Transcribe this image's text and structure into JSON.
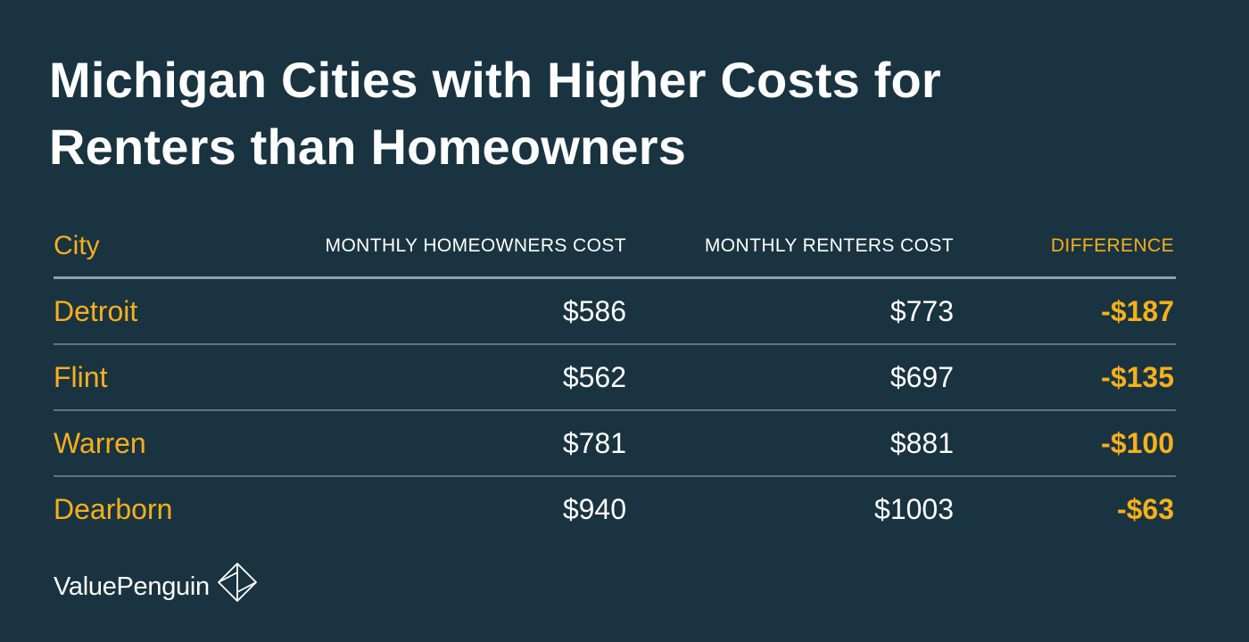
{
  "title_lines": [
    "Michigan Cities with Higher Costs for",
    "Renters than Homeowners"
  ],
  "chart_data": {
    "type": "table",
    "columns": [
      "City",
      "MONTHLY HOMEOWNERS COST",
      "MONTHLY RENTERS COST",
      "DIFFERENCE"
    ],
    "rows": [
      {
        "city": "Detroit",
        "homeowners": "$586",
        "renters": "$773",
        "difference": "-$187"
      },
      {
        "city": "Flint",
        "homeowners": "$562",
        "renters": "$697",
        "difference": "-$135"
      },
      {
        "city": "Warren",
        "homeowners": "$781",
        "renters": "$881",
        "difference": "-$100"
      },
      {
        "city": "Dearborn",
        "homeowners": "$940",
        "renters": "$1003",
        "difference": "-$63"
      }
    ]
  },
  "brand": {
    "name": "ValuePenguin",
    "logo_icon": "valuepenguin-logo-icon"
  },
  "colors": {
    "background": "#1a3340",
    "accent": "#f5b01c",
    "text": "#ffffff"
  }
}
